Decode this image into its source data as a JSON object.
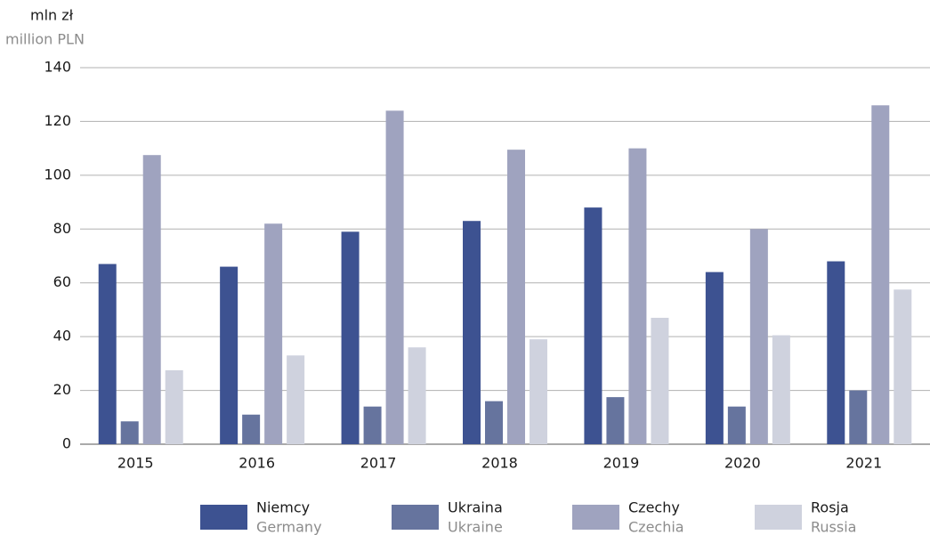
{
  "chart_data": {
    "type": "bar",
    "y_label": "mln zł",
    "y_label_en": "million PLN",
    "categories": [
      "2015",
      "2016",
      "2017",
      "2018",
      "2019",
      "2020",
      "2021"
    ],
    "series": [
      {
        "name": "Niemcy",
        "name_en": "Germany",
        "color": "#3d5291",
        "values": [
          67,
          66,
          79,
          83,
          88,
          64,
          68
        ]
      },
      {
        "name": "Ukraina",
        "name_en": "Ukraine",
        "color": "#66749e",
        "values": [
          8.5,
          11,
          14,
          16,
          17.5,
          14,
          20
        ]
      },
      {
        "name": "Czechy",
        "name_en": "Czechia",
        "color": "#9fa3bf",
        "values": [
          107.5,
          82,
          124,
          109.5,
          110,
          80,
          126
        ]
      },
      {
        "name": "Rosja",
        "name_en": "Russia",
        "color": "#cfd2de",
        "values": [
          27.5,
          33,
          36,
          39,
          47,
          40.5,
          57.5
        ]
      }
    ],
    "ylim": [
      0,
      140
    ],
    "yticks": [
      0,
      20,
      40,
      60,
      80,
      100,
      120,
      140
    ],
    "grid": true,
    "legend": "bottom"
  }
}
